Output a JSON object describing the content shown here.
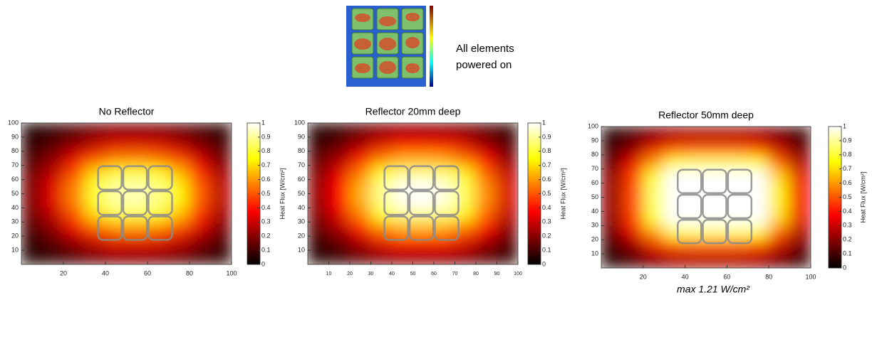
{
  "inset_caption": [
    "All elements",
    "powered on"
  ],
  "chart_data": [
    {
      "type": "heatmap",
      "title": "No Reflector",
      "colormap": "hot",
      "x": [
        5,
        15,
        25,
        35,
        45,
        55,
        65,
        75,
        85,
        95
      ],
      "y": [
        5,
        15,
        25,
        35,
        45,
        55,
        65,
        75,
        85,
        95
      ],
      "z": [
        [
          0.04,
          0.07,
          0.11,
          0.16,
          0.19,
          0.19,
          0.18,
          0.15,
          0.1,
          0.06
        ],
        [
          0.07,
          0.12,
          0.2,
          0.28,
          0.33,
          0.33,
          0.32,
          0.27,
          0.18,
          0.1
        ],
        [
          0.11,
          0.2,
          0.34,
          0.48,
          0.56,
          0.57,
          0.54,
          0.46,
          0.31,
          0.17
        ],
        [
          0.16,
          0.28,
          0.48,
          0.69,
          0.79,
          0.81,
          0.77,
          0.65,
          0.44,
          0.24
        ],
        [
          0.19,
          0.33,
          0.56,
          0.79,
          0.91,
          0.93,
          0.88,
          0.74,
          0.51,
          0.28
        ],
        [
          0.19,
          0.33,
          0.56,
          0.79,
          0.91,
          0.93,
          0.88,
          0.74,
          0.51,
          0.28
        ],
        [
          0.16,
          0.28,
          0.48,
          0.69,
          0.79,
          0.81,
          0.77,
          0.65,
          0.44,
          0.24
        ],
        [
          0.11,
          0.2,
          0.34,
          0.48,
          0.56,
          0.57,
          0.54,
          0.46,
          0.31,
          0.17
        ],
        [
          0.07,
          0.12,
          0.2,
          0.28,
          0.33,
          0.33,
          0.32,
          0.27,
          0.18,
          0.1
        ],
        [
          0.04,
          0.07,
          0.11,
          0.16,
          0.19,
          0.19,
          0.18,
          0.15,
          0.1,
          0.06
        ]
      ],
      "xlim": [
        0,
        100
      ],
      "ylim": [
        0,
        100
      ],
      "xticks": [
        20,
        40,
        60,
        80,
        100
      ],
      "yticks": [
        10,
        20,
        30,
        40,
        50,
        60,
        70,
        80,
        90,
        100
      ],
      "clim": [
        0,
        1
      ],
      "cticks": [
        0,
        0.1,
        0.2,
        0.3,
        0.4,
        0.5,
        0.6,
        0.7,
        0.8,
        0.9,
        1
      ],
      "colorbar_label": "Heat Flux [W/cm²]"
    },
    {
      "type": "heatmap",
      "title": "Reflector 20mm deep",
      "colormap": "hot",
      "x": [
        5,
        15,
        25,
        35,
        45,
        55,
        65,
        75,
        85,
        95
      ],
      "y": [
        5,
        15,
        25,
        35,
        45,
        55,
        65,
        75,
        85,
        95
      ],
      "z": [
        [
          0.05,
          0.08,
          0.14,
          0.19,
          0.22,
          0.22,
          0.21,
          0.18,
          0.13,
          0.07
        ],
        [
          0.08,
          0.14,
          0.24,
          0.33,
          0.38,
          0.38,
          0.37,
          0.32,
          0.22,
          0.12
        ],
        [
          0.14,
          0.24,
          0.4,
          0.55,
          0.62,
          0.63,
          0.61,
          0.52,
          0.37,
          0.2
        ],
        [
          0.19,
          0.33,
          0.55,
          0.77,
          0.87,
          0.88,
          0.85,
          0.73,
          0.51,
          0.28
        ],
        [
          0.22,
          0.38,
          0.63,
          0.88,
          0.99,
          1,
          0.97,
          0.83,
          0.58,
          0.32
        ],
        [
          0.22,
          0.38,
          0.63,
          0.88,
          0.99,
          1,
          0.97,
          0.83,
          0.58,
          0.32
        ],
        [
          0.19,
          0.33,
          0.55,
          0.77,
          0.87,
          0.88,
          0.85,
          0.73,
          0.51,
          0.28
        ],
        [
          0.14,
          0.24,
          0.4,
          0.55,
          0.62,
          0.63,
          0.61,
          0.52,
          0.37,
          0.2
        ],
        [
          0.08,
          0.14,
          0.24,
          0.33,
          0.38,
          0.38,
          0.37,
          0.32,
          0.22,
          0.12
        ],
        [
          0.05,
          0.08,
          0.14,
          0.19,
          0.22,
          0.22,
          0.21,
          0.18,
          0.13,
          0.07
        ]
      ],
      "xlim": [
        0,
        100
      ],
      "ylim": [
        0,
        100
      ],
      "xticks": [
        10,
        20,
        30,
        40,
        50,
        60,
        70,
        80,
        90,
        100
      ],
      "yticks": [
        10,
        20,
        30,
        40,
        50,
        60,
        70,
        80,
        90,
        100
      ],
      "clim": [
        0,
        1
      ],
      "cticks": [
        0,
        0.1,
        0.2,
        0.3,
        0.4,
        0.5,
        0.6,
        0.7,
        0.8,
        0.9,
        1
      ],
      "colorbar_label": "Heat Flux [W/cm²]"
    },
    {
      "type": "heatmap",
      "title": "Reflector 50mm deep",
      "colormap": "hot",
      "x": [
        5,
        15,
        25,
        35,
        45,
        55,
        65,
        75,
        85,
        95
      ],
      "y": [
        5,
        15,
        25,
        35,
        45,
        55,
        65,
        75,
        85,
        95
      ],
      "z": [
        [
          0.04,
          0.1,
          0.17,
          0.23,
          0.24,
          0.24,
          0.24,
          0.22,
          0.15,
          0.07
        ],
        [
          0.09,
          0.19,
          0.34,
          0.46,
          0.48,
          0.48,
          0.48,
          0.44,
          0.29,
          0.15
        ],
        [
          0.15,
          0.34,
          0.59,
          0.8,
          0.85,
          0.85,
          0.85,
          0.76,
          0.51,
          0.25
        ],
        [
          0.21,
          0.46,
          0.8,
          1.09,
          1.15,
          1.15,
          1.15,
          1.03,
          0.69,
          0.34
        ],
        [
          0.22,
          0.48,
          0.85,
          1.15,
          1.21,
          1.21,
          1.21,
          1.09,
          0.73,
          0.36
        ],
        [
          0.22,
          0.48,
          0.85,
          1.15,
          1.21,
          1.21,
          1.21,
          1.09,
          0.73,
          0.36
        ],
        [
          0.21,
          0.46,
          0.8,
          1.09,
          1.15,
          1.15,
          1.15,
          1.03,
          0.69,
          0.34
        ],
        [
          0.15,
          0.34,
          0.59,
          0.8,
          0.85,
          0.85,
          0.85,
          0.76,
          0.51,
          0.25
        ],
        [
          0.09,
          0.19,
          0.34,
          0.46,
          0.48,
          0.48,
          0.48,
          0.44,
          0.29,
          0.15
        ],
        [
          0.04,
          0.1,
          0.17,
          0.23,
          0.24,
          0.24,
          0.24,
          0.22,
          0.15,
          0.07
        ]
      ],
      "xlim": [
        0,
        100
      ],
      "ylim": [
        0,
        100
      ],
      "xticks": [
        20,
        40,
        60,
        80,
        100
      ],
      "yticks": [
        10,
        20,
        30,
        40,
        50,
        60,
        70,
        80,
        90,
        100
      ],
      "clim": [
        0,
        1
      ],
      "cticks": [
        0,
        0.1,
        0.2,
        0.3,
        0.4,
        0.5,
        0.6,
        0.7,
        0.8,
        0.9,
        1
      ],
      "colorbar_label": "Heat Flux [W/cm²]",
      "annotation": "max 1.21 W/cm²"
    }
  ]
}
